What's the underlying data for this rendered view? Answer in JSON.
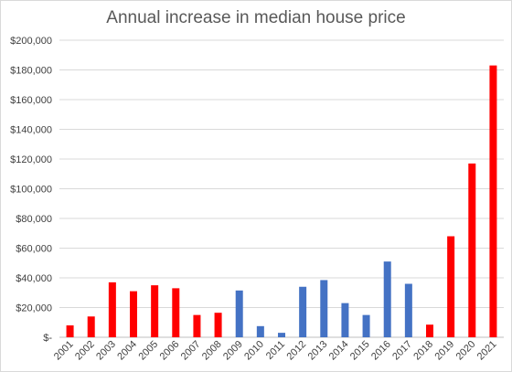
{
  "chart_data": {
    "type": "bar",
    "title": "Annual increase in median house price",
    "xlabel": "",
    "ylabel": "",
    "ylim": [
      0,
      200000
    ],
    "y_ticks": [
      0,
      20000,
      40000,
      60000,
      80000,
      100000,
      120000,
      140000,
      160000,
      180000,
      200000
    ],
    "y_tick_labels": [
      "$-",
      "$20,000",
      "$40,000",
      "$60,000",
      "$80,000",
      "$100,000",
      "$120,000",
      "$140,000",
      "$160,000",
      "$180,000",
      "$200,000"
    ],
    "grid": true,
    "legend": "none",
    "categories": [
      "2001",
      "2002",
      "2003",
      "2004",
      "2005",
      "2006",
      "2007",
      "2008",
      "2009",
      "2010",
      "2011",
      "2012",
      "2013",
      "2014",
      "2015",
      "2016",
      "2017",
      "2018",
      "2019",
      "2020",
      "2021"
    ],
    "values": [
      8000,
      14000,
      37000,
      31000,
      35000,
      33000,
      15000,
      16500,
      31500,
      7500,
      3000,
      34000,
      38500,
      23000,
      15000,
      51000,
      36000,
      8500,
      68000,
      117000,
      183000
    ],
    "bar_colors": [
      "#ff0000",
      "#ff0000",
      "#ff0000",
      "#ff0000",
      "#ff0000",
      "#ff0000",
      "#ff0000",
      "#ff0000",
      "#4472c4",
      "#4472c4",
      "#4472c4",
      "#4472c4",
      "#4472c4",
      "#4472c4",
      "#4472c4",
      "#4472c4",
      "#4472c4",
      "#ff0000",
      "#ff0000",
      "#ff0000",
      "#ff0000"
    ]
  }
}
